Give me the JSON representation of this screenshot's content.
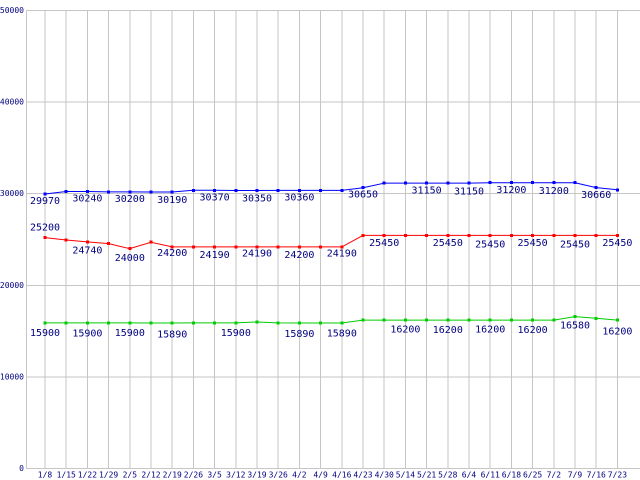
{
  "chart_data": {
    "type": "line",
    "title": "",
    "xlabel": "",
    "ylabel": "",
    "ylim": [
      0,
      50000
    ],
    "grid": true,
    "legend_position": "none",
    "background_color": "#ffffff",
    "grid_color": "#c6c6c6",
    "axis_text_color": "#000080",
    "label_text_color": "#000080",
    "y_tick_values": [
      0,
      10000,
      20000,
      30000,
      40000,
      50000
    ],
    "y_tick_labels": [
      "0",
      "10000",
      "20000",
      "30000",
      "40000",
      "50000"
    ],
    "x_tick_labels": [
      "1/8",
      "1/15",
      "1/22",
      "1/29",
      "2/5",
      "2/12",
      "2/19",
      "2/26",
      "3/5",
      "3/12",
      "3/19",
      "3/26",
      "4/2",
      "4/9",
      "4/16",
      "4/23",
      "4/30",
      "5/14",
      "5/21",
      "5/28",
      "6/4",
      "6/11",
      "6/18",
      "6/25",
      "7/2",
      "7/9",
      "7/16",
      "7/23"
    ],
    "series": [
      {
        "name": "blue",
        "color": "#0000ff",
        "values": [
          29970,
          30240,
          30240,
          30200,
          30200,
          30190,
          30190,
          30370,
          30370,
          30350,
          30350,
          30360,
          30360,
          30360,
          30360,
          30650,
          31150,
          31150,
          31150,
          31150,
          31150,
          31200,
          31200,
          31200,
          31200,
          31200,
          30660,
          30430
        ],
        "point_labels": [
          {
            "index": 0,
            "text": "29970",
            "dy": 10
          },
          {
            "index": 2,
            "text": "30240",
            "dy": 10
          },
          {
            "index": 4,
            "text": "30200",
            "dy": 10
          },
          {
            "index": 6,
            "text": "30190",
            "dy": 11
          },
          {
            "index": 8,
            "text": "30370",
            "dy": 10
          },
          {
            "index": 10,
            "text": "30350",
            "dy": 11
          },
          {
            "index": 12,
            "text": "30360",
            "dy": 10
          },
          {
            "index": 15,
            "text": "30650",
            "dy": 10
          },
          {
            "index": 18,
            "text": "31150",
            "dy": 10.5
          },
          {
            "index": 20,
            "text": "31150",
            "dy": 11.5
          },
          {
            "index": 22,
            "text": "31200",
            "dy": 10.5
          },
          {
            "index": 24,
            "text": "31200",
            "dy": 11.5
          },
          {
            "index": 26,
            "text": "30660",
            "dy": 10.5
          }
        ]
      },
      {
        "name": "red",
        "color": "#ff0000",
        "values": [
          25200,
          24950,
          24740,
          24550,
          24000,
          24700,
          24200,
          24200,
          24190,
          24190,
          24190,
          24200,
          24200,
          24190,
          24190,
          25450,
          25450,
          25450,
          25450,
          25450,
          25450,
          25450,
          25450,
          25450,
          25450,
          25450,
          25450,
          25450
        ],
        "point_labels": [
          {
            "index": 0,
            "text": "25200",
            "dy": -7
          },
          {
            "index": 2,
            "text": "24740",
            "dy": 11.5
          },
          {
            "index": 4,
            "text": "24000",
            "dy": 12.5
          },
          {
            "index": 6,
            "text": "24200",
            "dy": 9
          },
          {
            "index": 8,
            "text": "24190",
            "dy": 11
          },
          {
            "index": 10,
            "text": "24190",
            "dy": 9.5
          },
          {
            "index": 12,
            "text": "24200",
            "dy": 11
          },
          {
            "index": 14,
            "text": "24190",
            "dy": 9.5
          },
          {
            "index": 16,
            "text": "25450",
            "dy": 10.5
          },
          {
            "index": 19,
            "text": "25450",
            "dy": 10.5
          },
          {
            "index": 21,
            "text": "25450",
            "dy": 12
          },
          {
            "index": 23,
            "text": "25450",
            "dy": 10.5
          },
          {
            "index": 25,
            "text": "25450",
            "dy": 12
          },
          {
            "index": 27,
            "text": "25450",
            "dy": 10.5
          }
        ]
      },
      {
        "name": "green",
        "color": "#00cc00",
        "values": [
          15900,
          15900,
          15900,
          15900,
          15900,
          15890,
          15890,
          15900,
          15900,
          15900,
          16000,
          15900,
          15890,
          15890,
          15890,
          16200,
          16200,
          16200,
          16200,
          16200,
          16200,
          16200,
          16200,
          16200,
          16200,
          16580,
          16400,
          16200
        ],
        "point_labels": [
          {
            "index": 0,
            "text": "15900",
            "dy": 13
          },
          {
            "index": 2,
            "text": "15900",
            "dy": 13.5
          },
          {
            "index": 4,
            "text": "15900",
            "dy": 13
          },
          {
            "index": 6,
            "text": "15890",
            "dy": 14.5
          },
          {
            "index": 9,
            "text": "15900",
            "dy": 13
          },
          {
            "index": 12,
            "text": "15890",
            "dy": 14
          },
          {
            "index": 14,
            "text": "15890",
            "dy": 13.5
          },
          {
            "index": 17,
            "text": "16200",
            "dy": 12.5
          },
          {
            "index": 19,
            "text": "16200",
            "dy": 13
          },
          {
            "index": 21,
            "text": "16200",
            "dy": 12.5
          },
          {
            "index": 23,
            "text": "16200",
            "dy": 13
          },
          {
            "index": 25,
            "text": "16580",
            "dy": 12
          },
          {
            "index": 27,
            "text": "16200",
            "dy": 14.5
          }
        ]
      }
    ]
  }
}
